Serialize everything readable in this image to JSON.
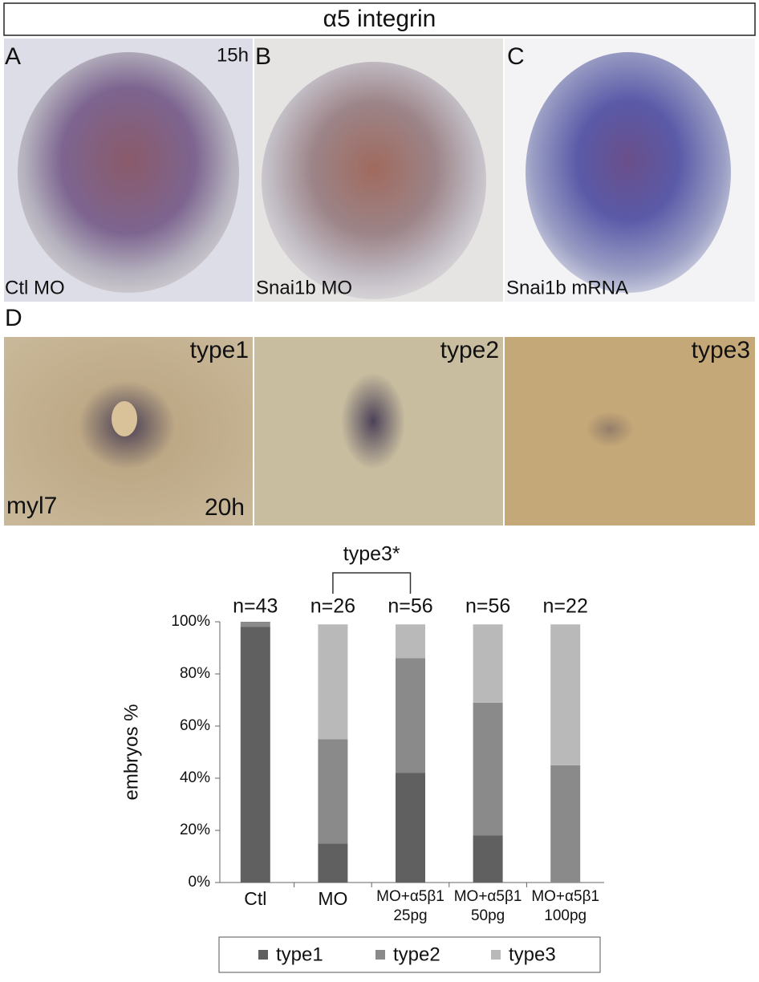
{
  "header": {
    "title": "α5 integrin"
  },
  "panels": [
    {
      "letter": "A",
      "time": "15h",
      "caption": "Ctl MO"
    },
    {
      "letter": "B",
      "caption": "Snai1b MO"
    },
    {
      "letter": "C",
      "caption": "Snai1b mRNA"
    }
  ],
  "panel_d": {
    "letter": "D",
    "marker": "myl7",
    "time": "20h",
    "types": [
      "type1",
      "type2",
      "type3"
    ]
  },
  "chart_data": {
    "type": "bar",
    "stacked": true,
    "categories": [
      [
        "Ctl"
      ],
      [
        "MO"
      ],
      [
        "MO+α5β1",
        "25pg"
      ],
      [
        "MO+α5β1",
        "50pg"
      ],
      [
        "MO+α5β1",
        "100pg"
      ]
    ],
    "n_labels": [
      "n=43",
      "n=26",
      "n=56",
      "n=56",
      "n=22"
    ],
    "bracket_label": "type3*",
    "series": [
      {
        "name": "type1",
        "color": "#606060",
        "values": [
          98,
          15,
          42,
          18,
          0
        ]
      },
      {
        "name": "type2",
        "color": "#8a8a8a",
        "values": [
          2,
          40,
          44,
          51,
          45
        ]
      },
      {
        "name": "type3",
        "color": "#b9b9b9",
        "values": [
          0,
          44,
          13,
          30,
          54
        ]
      }
    ],
    "ylabel": "embryos %",
    "ylim": [
      0,
      100
    ],
    "yticks": [
      {
        "value": 0,
        "label": "0%"
      },
      {
        "value": 20,
        "label": "20%"
      },
      {
        "value": 40,
        "label": "40%"
      },
      {
        "value": 60,
        "label": "60%"
      },
      {
        "value": 80,
        "label": "80%"
      },
      {
        "value": 100,
        "label": "100%"
      }
    ],
    "legend": "bottom"
  }
}
